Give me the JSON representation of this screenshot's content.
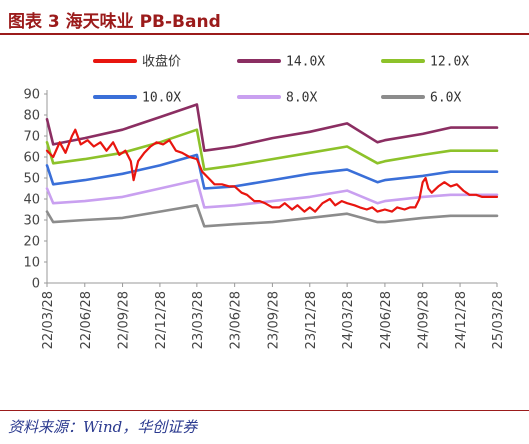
{
  "header": {
    "title": "图表 3   海天味业 PB-Band",
    "accent_color": "#9b1b1b"
  },
  "footer": {
    "source": "资料来源：Wind，华创证券",
    "source_color": "#2b3a8f"
  },
  "chart_data": {
    "type": "line",
    "title": "",
    "xlabel": "",
    "ylabel": "",
    "ylim": [
      0,
      90
    ],
    "y_ticks": [
      0,
      10,
      20,
      30,
      40,
      50,
      60,
      70,
      80,
      90
    ],
    "x_tick_labels": [
      "22/03/28",
      "22/06/28",
      "22/09/28",
      "22/12/28",
      "23/03/28",
      "23/06/28",
      "23/09/28",
      "23/12/28",
      "24/03/28",
      "24/06/28",
      "24/09/28",
      "24/12/28",
      "25/03/28"
    ],
    "grid": false,
    "legend_position": "top",
    "series": [
      {
        "name": "收盘价",
        "color": "#e8150f",
        "width": 2.2,
        "points": [
          [
            "22/03/28",
            63
          ],
          [
            "22/04/12",
            60
          ],
          [
            "22/04/28",
            67
          ],
          [
            "22/05/12",
            62
          ],
          [
            "22/05/28",
            70
          ],
          [
            "22/06/05",
            73
          ],
          [
            "22/06/18",
            66
          ],
          [
            "22/07/05",
            68
          ],
          [
            "22/07/20",
            65
          ],
          [
            "22/08/05",
            67
          ],
          [
            "22/08/20",
            63
          ],
          [
            "22/09/05",
            67
          ],
          [
            "22/09/20",
            61
          ],
          [
            "22/10/05",
            63
          ],
          [
            "22/10/18",
            58
          ],
          [
            "22/10/25",
            49
          ],
          [
            "22/11/05",
            58
          ],
          [
            "22/11/20",
            62
          ],
          [
            "22/12/05",
            65
          ],
          [
            "22/12/20",
            67
          ],
          [
            "23/01/05",
            66
          ],
          [
            "23/01/20",
            68
          ],
          [
            "23/02/05",
            63
          ],
          [
            "23/02/20",
            62
          ],
          [
            "23/03/10",
            60
          ],
          [
            "23/03/28",
            59
          ],
          [
            "23/04/10",
            53
          ],
          [
            "23/04/25",
            50
          ],
          [
            "23/05/10",
            47
          ],
          [
            "23/05/28",
            47
          ],
          [
            "23/06/15",
            46
          ],
          [
            "23/06/28",
            46
          ],
          [
            "23/07/15",
            43
          ],
          [
            "23/07/28",
            42
          ],
          [
            "23/08/15",
            39
          ],
          [
            "23/08/28",
            39
          ],
          [
            "23/09/10",
            38
          ],
          [
            "23/09/28",
            36
          ],
          [
            "23/10/15",
            36
          ],
          [
            "23/10/28",
            38
          ],
          [
            "23/11/15",
            35
          ],
          [
            "23/11/28",
            37
          ],
          [
            "23/12/15",
            34
          ],
          [
            "23/12/28",
            36
          ],
          [
            "24/01/10",
            34
          ],
          [
            "24/01/28",
            38
          ],
          [
            "24/02/15",
            40
          ],
          [
            "24/02/28",
            37
          ],
          [
            "24/03/15",
            39
          ],
          [
            "24/03/28",
            38
          ],
          [
            "24/04/15",
            37
          ],
          [
            "24/04/28",
            36
          ],
          [
            "24/05/15",
            35
          ],
          [
            "24/05/28",
            36
          ],
          [
            "24/06/10",
            34
          ],
          [
            "24/06/28",
            35
          ],
          [
            "24/07/15",
            34
          ],
          [
            "24/07/28",
            36
          ],
          [
            "24/08/15",
            35
          ],
          [
            "24/08/28",
            36
          ],
          [
            "24/09/10",
            36
          ],
          [
            "24/09/20",
            40
          ],
          [
            "24/09/28",
            48
          ],
          [
            "24/10/05",
            50
          ],
          [
            "24/10/12",
            45
          ],
          [
            "24/10/20",
            43
          ],
          [
            "24/11/05",
            46
          ],
          [
            "24/11/20",
            48
          ],
          [
            "24/12/05",
            46
          ],
          [
            "24/12/20",
            47
          ],
          [
            "25/01/05",
            44
          ],
          [
            "25/01/20",
            42
          ],
          [
            "25/02/05",
            42
          ],
          [
            "25/02/20",
            41
          ],
          [
            "25/03/10",
            41
          ],
          [
            "25/03/28",
            41
          ]
        ]
      },
      {
        "name": "14.0X",
        "color": "#8b2e62",
        "width": 2.6,
        "points": [
          [
            "22/03/28",
            78
          ],
          [
            "22/04/12",
            66
          ],
          [
            "22/06/28",
            69
          ],
          [
            "22/09/28",
            73
          ],
          [
            "22/12/28",
            79
          ],
          [
            "23/03/28",
            85
          ],
          [
            "23/04/15",
            63
          ],
          [
            "23/06/28",
            65
          ],
          [
            "23/09/28",
            69
          ],
          [
            "23/12/28",
            72
          ],
          [
            "24/03/28",
            76
          ],
          [
            "24/06/10",
            67
          ],
          [
            "24/06/28",
            68
          ],
          [
            "24/09/28",
            71
          ],
          [
            "24/12/05",
            74
          ],
          [
            "24/12/28",
            74
          ],
          [
            "25/03/28",
            74
          ]
        ]
      },
      {
        "name": "12.0X",
        "color": "#8dc22a",
        "width": 2.6,
        "points": [
          [
            "22/03/28",
            67
          ],
          [
            "22/04/12",
            57
          ],
          [
            "22/06/28",
            59
          ],
          [
            "22/09/28",
            62
          ],
          [
            "22/12/28",
            67
          ],
          [
            "23/03/28",
            73
          ],
          [
            "23/04/15",
            54
          ],
          [
            "23/06/28",
            56
          ],
          [
            "23/09/28",
            59
          ],
          [
            "23/12/28",
            62
          ],
          [
            "24/03/28",
            65
          ],
          [
            "24/06/10",
            57
          ],
          [
            "24/06/28",
            58
          ],
          [
            "24/09/28",
            61
          ],
          [
            "24/12/05",
            63
          ],
          [
            "24/12/28",
            63
          ],
          [
            "25/03/28",
            63
          ]
        ]
      },
      {
        "name": "10.0X",
        "color": "#3a6fd8",
        "width": 2.6,
        "points": [
          [
            "22/03/28",
            56
          ],
          [
            "22/04/12",
            47
          ],
          [
            "22/06/28",
            49
          ],
          [
            "22/09/28",
            52
          ],
          [
            "22/12/28",
            56
          ],
          [
            "23/03/28",
            61
          ],
          [
            "23/04/15",
            45
          ],
          [
            "23/06/28",
            46
          ],
          [
            "23/09/28",
            49
          ],
          [
            "23/12/28",
            52
          ],
          [
            "24/03/28",
            54
          ],
          [
            "24/06/10",
            48
          ],
          [
            "24/06/28",
            49
          ],
          [
            "24/09/28",
            51
          ],
          [
            "24/12/05",
            53
          ],
          [
            "24/12/28",
            53
          ],
          [
            "25/03/28",
            53
          ]
        ]
      },
      {
        "name": "8.0X",
        "color": "#c9a0f0",
        "width": 2.6,
        "points": [
          [
            "22/03/28",
            45
          ],
          [
            "22/04/12",
            38
          ],
          [
            "22/06/28",
            39
          ],
          [
            "22/09/28",
            41
          ],
          [
            "22/12/28",
            45
          ],
          [
            "23/03/28",
            49
          ],
          [
            "23/04/15",
            36
          ],
          [
            "23/06/28",
            37
          ],
          [
            "23/09/28",
            39
          ],
          [
            "23/12/28",
            41
          ],
          [
            "24/03/28",
            44
          ],
          [
            "24/06/10",
            38
          ],
          [
            "24/06/28",
            39
          ],
          [
            "24/09/28",
            41
          ],
          [
            "24/12/05",
            42
          ],
          [
            "24/12/28",
            42
          ],
          [
            "25/03/28",
            42
          ]
        ]
      },
      {
        "name": "6.0X",
        "color": "#8c8c8c",
        "width": 2.6,
        "points": [
          [
            "22/03/28",
            34
          ],
          [
            "22/04/12",
            29
          ],
          [
            "22/06/28",
            30
          ],
          [
            "22/09/28",
            31
          ],
          [
            "22/12/28",
            34
          ],
          [
            "23/03/28",
            37
          ],
          [
            "23/04/15",
            27
          ],
          [
            "23/06/28",
            28
          ],
          [
            "23/09/28",
            29
          ],
          [
            "23/12/28",
            31
          ],
          [
            "24/03/28",
            33
          ],
          [
            "24/06/10",
            29
          ],
          [
            "24/06/28",
            29
          ],
          [
            "24/09/28",
            31
          ],
          [
            "24/12/05",
            32
          ],
          [
            "24/12/28",
            32
          ],
          [
            "25/03/28",
            32
          ]
        ]
      }
    ]
  }
}
